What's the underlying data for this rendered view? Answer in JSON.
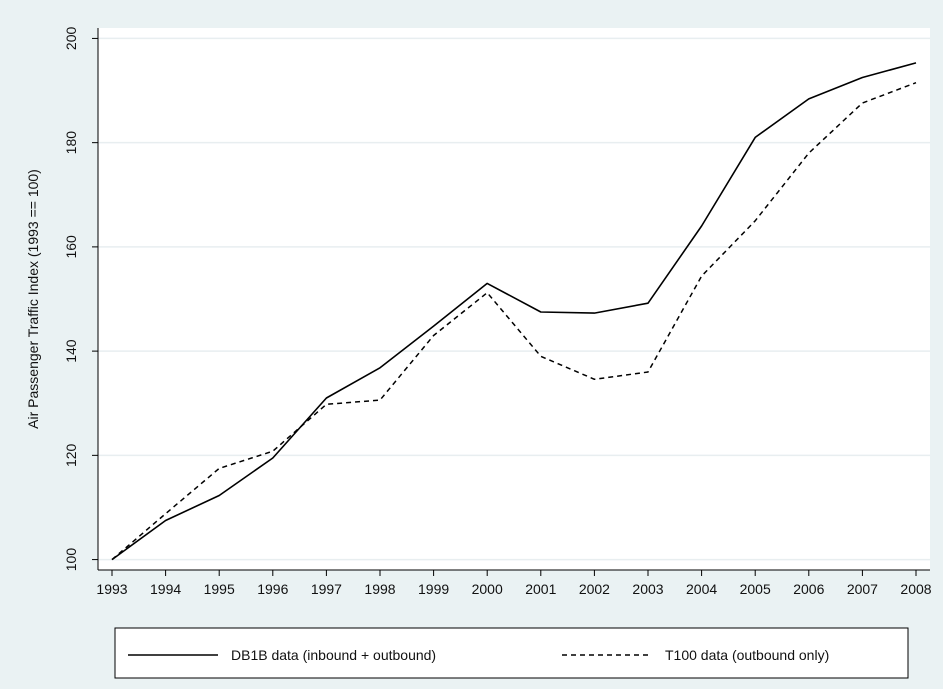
{
  "chart_data": {
    "type": "line",
    "title": "",
    "xlabel": "",
    "ylabel": "Air Passenger Traffic Index  (1993 == 100)",
    "x": [
      1993,
      1994,
      1995,
      1996,
      1997,
      1998,
      1999,
      2000,
      2001,
      2002,
      2003,
      2004,
      2005,
      2006,
      2007,
      2008
    ],
    "xlim": [
      1993,
      2008
    ],
    "ylim": [
      98,
      202
    ],
    "yticks": [
      100,
      120,
      140,
      160,
      180,
      200
    ],
    "grid": true,
    "legend_position": "bottom",
    "series": [
      {
        "name": "DB1B data (inbound + outbound)",
        "style": "solid",
        "values": [
          100,
          107.5,
          112.3,
          119.5,
          131.0,
          136.8,
          144.8,
          153.0,
          147.5,
          147.3,
          149.2,
          164.0,
          181.0,
          188.4,
          192.5,
          195.3
        ]
      },
      {
        "name": "T100 data (outbound only)",
        "style": "dashed",
        "values": [
          100,
          108.8,
          117.5,
          120.8,
          129.8,
          130.6,
          143.0,
          151.2,
          139.0,
          134.6,
          136.0,
          154.4,
          165.0,
          178.0,
          187.6,
          191.5
        ]
      }
    ],
    "colors": {
      "background": "#eaf2f3",
      "plot_background": "#ffffff",
      "grid": "#e8eef0",
      "line": "#000000"
    }
  }
}
